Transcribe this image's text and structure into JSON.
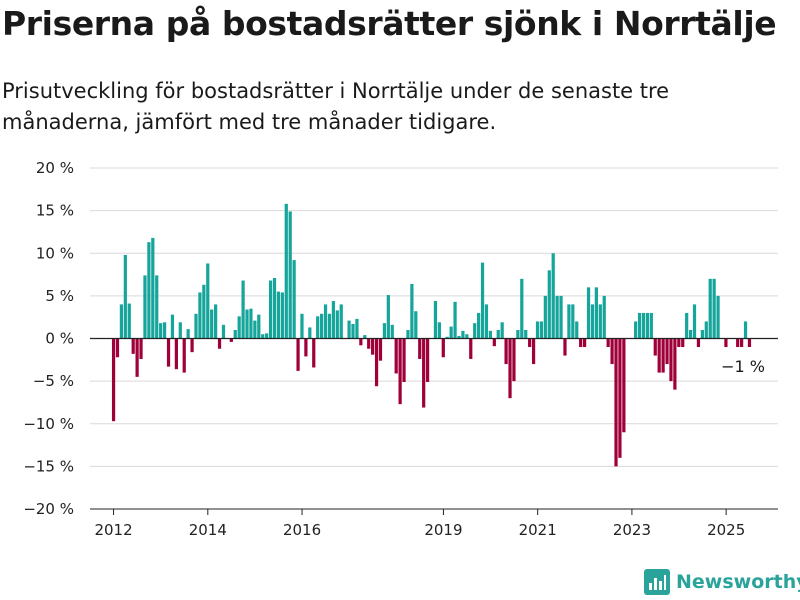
{
  "title": "Priserna på bostadsrätter sjönk i Norrtälje",
  "subtitle": "Prisutveckling för bostadsrätter i Norrtälje under de senaste tre månaderna, jämfört med tre månader tidigare.",
  "brand": "Newsworthy",
  "colors": {
    "positive": "#16a59b",
    "negative": "#a0003a",
    "grid": "#d9d9d9",
    "brand": "#2aa39a"
  },
  "chart_data": {
    "type": "bar",
    "ylim": [
      -20,
      20
    ],
    "y_ticks": [
      20,
      15,
      10,
      5,
      0,
      -5,
      -10,
      -15,
      -20
    ],
    "y_tick_labels": [
      "20 %",
      "15 %",
      "10 %",
      "5 %",
      "0 %",
      "−5 %",
      "−10 %",
      "−15 %",
      "−20 %"
    ],
    "x_range": [
      2011.5,
      2026.1
    ],
    "x_ticks": [
      2012,
      2014,
      2016,
      2019,
      2021,
      2023,
      2025
    ],
    "x_tick_labels": [
      "2012",
      "2014",
      "2016",
      "2019",
      "2021",
      "2023",
      "2025"
    ],
    "grid": true,
    "annotation": "−1 %",
    "start": 2012.0,
    "step": 0.0833,
    "values": [
      -9.7,
      -2.2,
      4.0,
      9.8,
      4.1,
      -1.8,
      -4.5,
      -2.4,
      7.4,
      11.3,
      11.8,
      7.4,
      1.8,
      1.9,
      -3.3,
      2.8,
      -3.6,
      1.9,
      -4.0,
      1.1,
      -1.6,
      2.9,
      5.4,
      6.3,
      8.8,
      3.4,
      4.0,
      -1.2,
      1.6,
      0,
      -0.4,
      1.0,
      2.6,
      6.8,
      3.4,
      3.5,
      2.1,
      2.8,
      0.5,
      0.6,
      6.8,
      7.1,
      5.5,
      5.4,
      15.8,
      14.9,
      9.2,
      -3.8,
      2.9,
      -2.1,
      1.3,
      -3.4,
      2.6,
      2.9,
      4.0,
      2.9,
      4.4,
      3.3,
      4.0,
      0,
      2.1,
      1.7,
      2.3,
      -0.8,
      0.4,
      -1.2,
      -1.9,
      -5.6,
      -2.6,
      1.8,
      5.1,
      1.6,
      -4.1,
      -7.7,
      -5.1,
      1.0,
      6.4,
      3.2,
      -2.4,
      -8.1,
      -5.1,
      0,
      4.4,
      1.9,
      -2.2,
      0.2,
      1.4,
      4.3,
      0.3,
      0.9,
      0.5,
      -2.4,
      1.8,
      3.0,
      8.9,
      4.0,
      0.9,
      -0.9,
      1.0,
      1.9,
      -3.0,
      -7.0,
      -5.0,
      1.0,
      7.0,
      1.0,
      -1.0,
      -3.0,
      2.0,
      2.0,
      5.0,
      8.0,
      10.0,
      5.0,
      5.0,
      -2.0,
      4.0,
      4.0,
      2.0,
      -1.0,
      -1.0,
      6.0,
      4.0,
      6.0,
      4.0,
      5.0,
      -1.0,
      -3.0,
      -15.0,
      -14.0,
      -11.0,
      0,
      0,
      2.0,
      3.0,
      3.0,
      3.0,
      3.0,
      -2.0,
      -4.0,
      -4.0,
      -3.0,
      -5.0,
      -6.0,
      -1.0,
      -1.0,
      3.0,
      1.0,
      4.0,
      -1.0,
      1.0,
      2.0,
      7.0,
      7.0,
      5.0,
      0,
      -1.0,
      0,
      0,
      -1.0,
      -1.0,
      2.0,
      -1.0
    ]
  }
}
